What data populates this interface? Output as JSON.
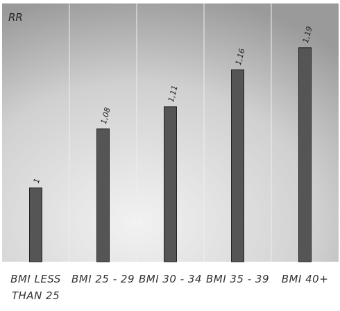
{
  "chart_data": {
    "type": "bar",
    "title": "RR",
    "categories": [
      "BMI LESS THAN 25",
      "BMI 25 - 29",
      "BMI 30 - 34",
      "BMI 35 - 39",
      "BMI 40+"
    ],
    "values": [
      1,
      1.08,
      1.11,
      1.16,
      1.19
    ],
    "value_labels": [
      "1",
      "1,08",
      "1,11",
      "1,16",
      "1,19"
    ],
    "color": "#555555",
    "ylim": [
      0.9,
      1.25
    ]
  }
}
